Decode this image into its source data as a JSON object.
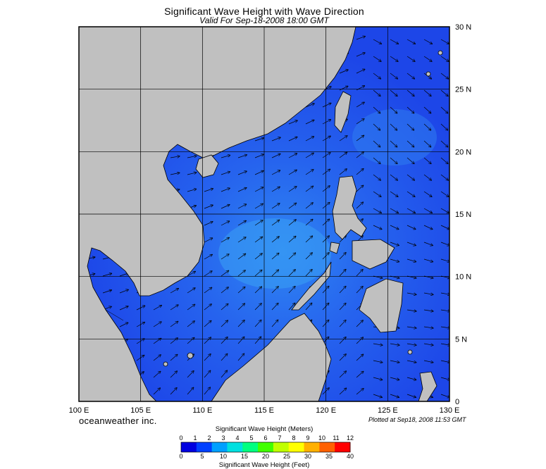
{
  "title": "Significant Wave Height with Wave Direction",
  "subtitle": "Valid For Sep-18-2008 18:00 GMT",
  "map": {
    "lon_range": [
      100,
      130
    ],
    "lat_range": [
      0,
      30
    ],
    "grid_step_deg": 5,
    "lon_labels": [
      "100 E",
      "105 E",
      "110 E",
      "115 E",
      "120 E",
      "125 E",
      "130 E"
    ],
    "lat_labels": [
      "30 N",
      "25 N",
      "20 N",
      "15 N",
      "10 N",
      "5 N",
      "0"
    ],
    "land_color": "#c0c0c0",
    "ocean_color": "#1f4ff0",
    "arrow_color": "#000000",
    "prevailing_wave_direction": "toward northeast",
    "peak_wave_height_region": "central South China Sea near 12 N 117 E"
  },
  "brand": "oceanweather inc.",
  "plotted": "Plotted at Sep18, 2008 11:53 GMT",
  "colorbar": {
    "title_top": "Significant Wave Height (Meters)",
    "title_bottom": "Significant Wave Height (Feet)",
    "meters": [
      "0",
      "1",
      "2",
      "3",
      "4",
      "5",
      "6",
      "7",
      "8",
      "9",
      "10",
      "11",
      "12"
    ],
    "feet": [
      "0",
      "5",
      "10",
      "15",
      "20",
      "25",
      "30",
      "35",
      "40"
    ],
    "colors": [
      "#0000e0",
      "#0040ff",
      "#00a0ff",
      "#00e0e0",
      "#00ff80",
      "#40ff00",
      "#c0ff00",
      "#ffff00",
      "#ffb000",
      "#ff6000",
      "#ff0000"
    ]
  }
}
